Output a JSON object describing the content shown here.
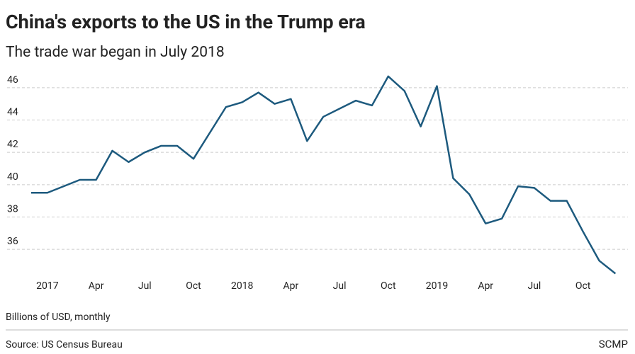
{
  "chart_data": {
    "type": "line",
    "title": "China's exports to the US in the Trump era",
    "subtitle": "The trade war began in July 2018",
    "y_axis_note": "Billions of USD, monthly",
    "source": "Source: US Census Bureau",
    "brand": "SCMP",
    "categories": [
      null,
      "2017",
      null,
      null,
      "Apr",
      null,
      null,
      "Jul",
      null,
      null,
      "Oct",
      null,
      null,
      "2018",
      null,
      null,
      "Apr",
      null,
      null,
      "Jul",
      null,
      null,
      "Oct",
      null,
      null,
      "2019",
      null,
      null,
      "Apr",
      null,
      null,
      "Jul",
      null,
      null,
      "Oct",
      null,
      null
    ],
    "series": [
      {
        "name": "Exports",
        "color": "#1d5a7e",
        "values": [
          39.5,
          39.5,
          39.9,
          40.3,
          40.3,
          42.1,
          41.4,
          42.0,
          42.4,
          42.4,
          41.6,
          43.2,
          44.8,
          45.1,
          45.7,
          45.0,
          45.3,
          42.7,
          44.2,
          44.7,
          45.2,
          44.9,
          46.7,
          45.8,
          43.6,
          46.1,
          40.4,
          39.4,
          37.6,
          37.9,
          39.9,
          39.8,
          39.0,
          39.0,
          37.1,
          35.3,
          34.5
        ]
      }
    ],
    "ylim": [
      34.3,
      47
    ],
    "yticks": [
      36,
      38,
      40,
      42,
      44,
      46
    ],
    "grid": true
  }
}
